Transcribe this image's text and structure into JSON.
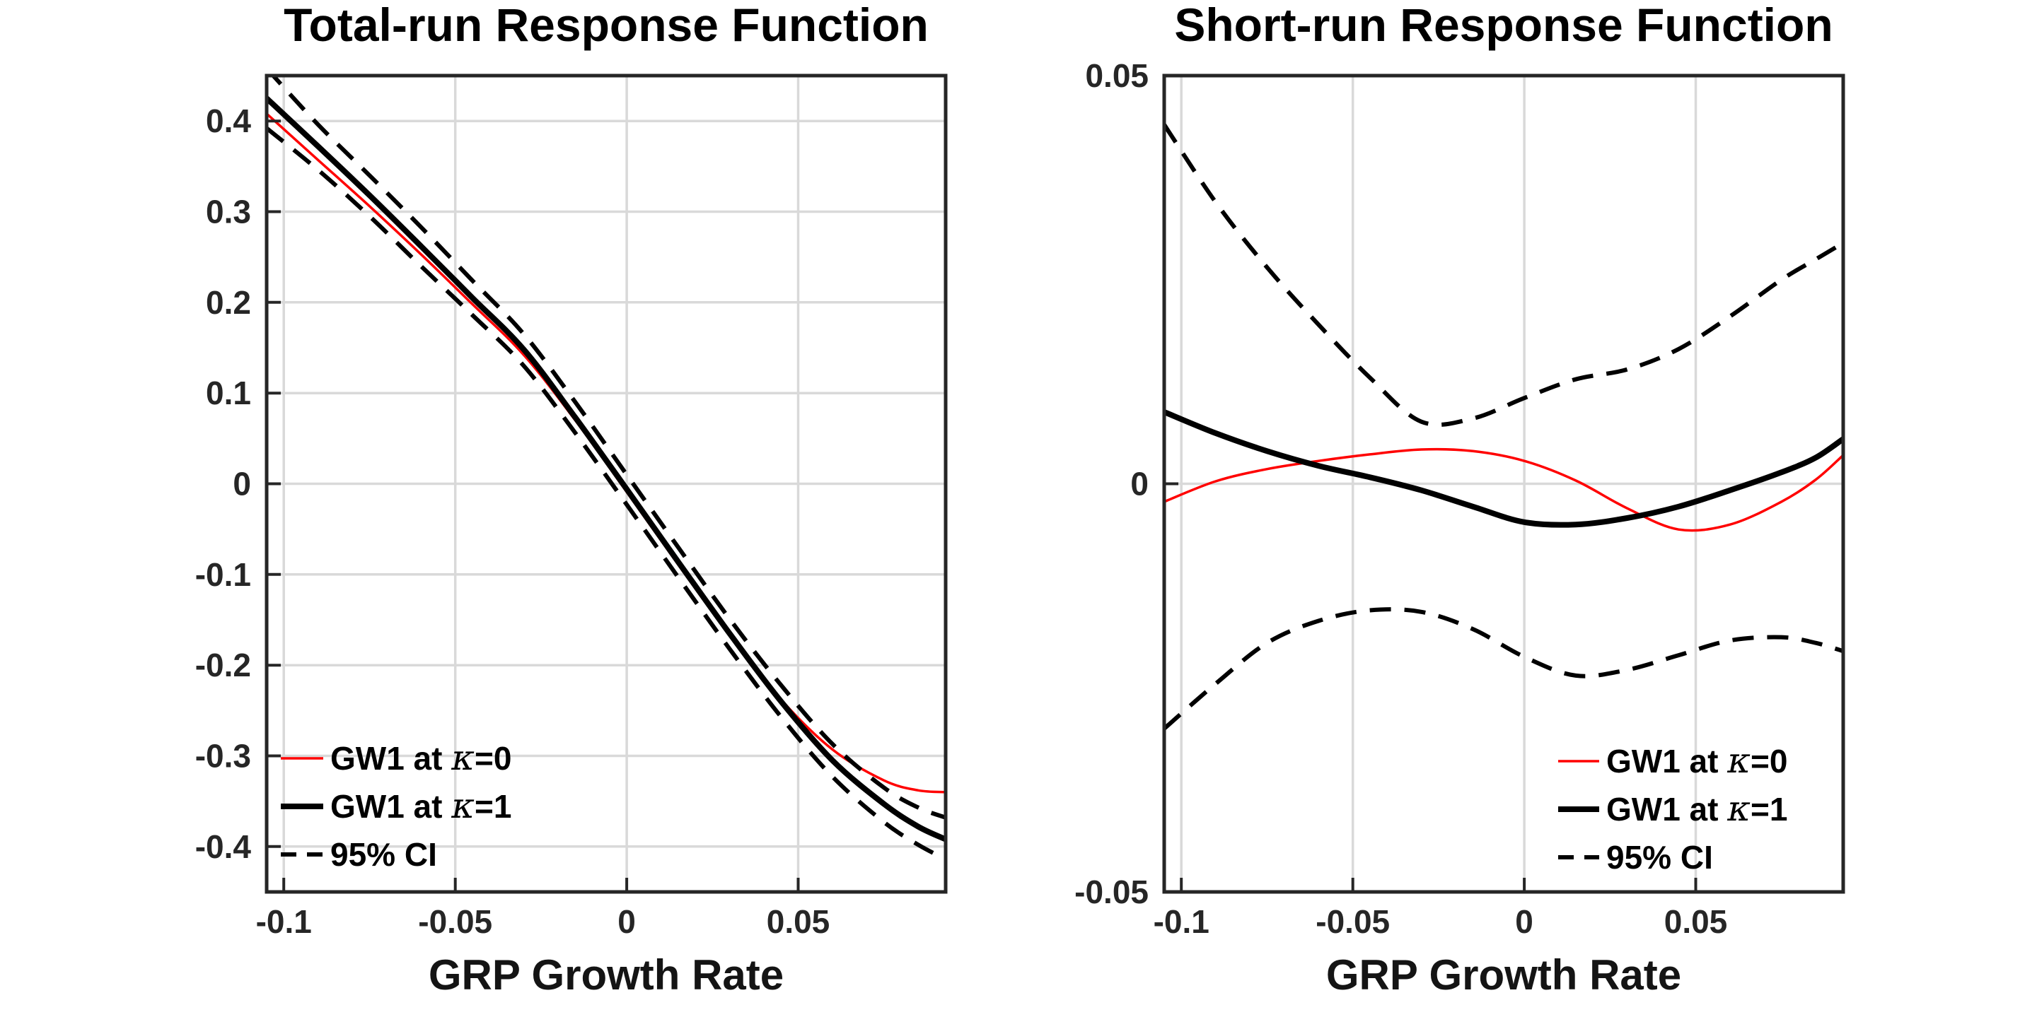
{
  "figure": {
    "background": "#ffffff",
    "colors": {
      "red_line": "#ff0000",
      "black_line": "#000000",
      "grid": "#d9d9d9",
      "axis": "#262626",
      "tick_text": "#262626",
      "title_text": "#000000"
    }
  },
  "chart_data": [
    {
      "type": "line",
      "title": "Total-run Response Function",
      "xlabel": "GRP Growth Rate",
      "ylabel": "",
      "xlim": [
        -0.105,
        0.093
      ],
      "ylim": [
        -0.45,
        0.45
      ],
      "xticks": [
        -0.1,
        -0.05,
        0,
        0.05
      ],
      "xtick_labels": [
        "-0.1",
        "-0.05",
        "0",
        "0.05"
      ],
      "yticks": [
        0.4,
        0.3,
        0.2,
        0.1,
        0,
        -0.1,
        -0.2,
        -0.3,
        -0.4
      ],
      "ytick_labels": [
        "0.4",
        "0.3",
        "0.2",
        "0.1",
        "0",
        "-0.1",
        "-0.2",
        "-0.3",
        "-0.4"
      ],
      "grid": "on",
      "x": [
        -0.105,
        -0.09,
        -0.075,
        -0.06,
        -0.045,
        -0.03,
        -0.015,
        0,
        0.015,
        0.03,
        0.045,
        0.06,
        0.075,
        0.085,
        0.093
      ],
      "series": [
        {
          "name": "GW1 at κ=0",
          "color": "#ff0000",
          "width": 3.5,
          "dash": null,
          "y": [
            0.408,
            0.357,
            0.306,
            0.253,
            0.198,
            0.142,
            0.07,
            -0.009,
            -0.089,
            -0.167,
            -0.238,
            -0.293,
            -0.327,
            -0.338,
            -0.34
          ]
        },
        {
          "name": "GW1 at κ=1",
          "color": "#000000",
          "width": 8,
          "dash": null,
          "y": [
            0.425,
            0.372,
            0.318,
            0.262,
            0.205,
            0.148,
            0.073,
            -0.006,
            -0.086,
            -0.165,
            -0.24,
            -0.305,
            -0.353,
            -0.378,
            -0.392
          ]
        },
        {
          "name": "95% CI upper",
          "color": "#000000",
          "width": 6,
          "dash": [
            30,
            19
          ],
          "y": [
            0.458,
            0.396,
            0.34,
            0.283,
            0.224,
            0.165,
            0.09,
            0.01,
            -0.07,
            -0.149,
            -0.222,
            -0.287,
            -0.335,
            -0.357,
            -0.368
          ]
        },
        {
          "name": "95% CI lower",
          "color": "#000000",
          "width": 6,
          "dash": [
            30,
            19
          ],
          "y": [
            0.392,
            0.346,
            0.295,
            0.24,
            0.186,
            0.13,
            0.056,
            -0.023,
            -0.103,
            -0.182,
            -0.257,
            -0.323,
            -0.373,
            -0.398,
            -0.414
          ]
        }
      ],
      "legend": {
        "location": "southwest",
        "entries": [
          {
            "label": "GW1 at κ=0",
            "series": 0
          },
          {
            "label": "GW1 at κ=1",
            "series": 1
          },
          {
            "label": "95% CI",
            "series": 2
          }
        ]
      }
    },
    {
      "type": "line",
      "title": "Short-run Response Function",
      "xlabel": "GRP Growth Rate",
      "ylabel": "",
      "xlim": [
        -0.105,
        0.093
      ],
      "ylim": [
        -0.05,
        0.05
      ],
      "xticks": [
        -0.1,
        -0.05,
        0,
        0.05
      ],
      "xtick_labels": [
        "-0.1",
        "-0.05",
        "0",
        "0.05"
      ],
      "yticks": [
        0.05,
        0,
        -0.05
      ],
      "ytick_labels": [
        "0.05",
        "0",
        "-0.05"
      ],
      "grid": "x-and-zero",
      "x": [
        -0.105,
        -0.09,
        -0.075,
        -0.06,
        -0.045,
        -0.03,
        -0.015,
        0,
        0.015,
        0.03,
        0.045,
        0.06,
        0.075,
        0.085,
        0.093
      ],
      "series": [
        {
          "name": "GW1 at κ=0",
          "color": "#ff0000",
          "width": 3.5,
          "dash": null,
          "y": [
            -0.0022,
            0.0003,
            0.0018,
            0.0028,
            0.0036,
            0.0042,
            0.004,
            0.0028,
            0.0004,
            -0.003,
            -0.0056,
            -0.005,
            -0.0022,
            0.0005,
            0.0035
          ]
        },
        {
          "name": "GW1 at κ=1",
          "color": "#000000",
          "width": 8,
          "dash": null,
          "y": [
            0.0088,
            0.0062,
            0.004,
            0.0022,
            0.0008,
            -0.0008,
            -0.0028,
            -0.0047,
            -0.005,
            -0.0042,
            -0.0028,
            -0.0008,
            0.0014,
            0.0032,
            0.0055
          ]
        },
        {
          "name": "95% CI upper",
          "color": "#000000",
          "width": 6,
          "dash": [
            30,
            19
          ],
          "y": [
            0.044,
            0.0345,
            0.0265,
            0.0195,
            0.013,
            0.0076,
            0.008,
            0.0105,
            0.0128,
            0.014,
            0.0165,
            0.0205,
            0.025,
            0.0275,
            0.0295
          ]
        },
        {
          "name": "95% CI lower",
          "color": "#000000",
          "width": 6,
          "dash": [
            30,
            19
          ],
          "y": [
            -0.03,
            -0.0245,
            -0.0195,
            -0.0168,
            -0.0155,
            -0.0157,
            -0.0178,
            -0.0212,
            -0.0235,
            -0.0228,
            -0.021,
            -0.0192,
            -0.0188,
            -0.0195,
            -0.0205
          ]
        }
      ],
      "legend": {
        "location": "southeast",
        "entries": [
          {
            "label": "GW1 at κ=0",
            "series": 0
          },
          {
            "label": "GW1 at κ=1",
            "series": 1
          },
          {
            "label": "95% CI",
            "series": 2
          }
        ]
      }
    }
  ]
}
